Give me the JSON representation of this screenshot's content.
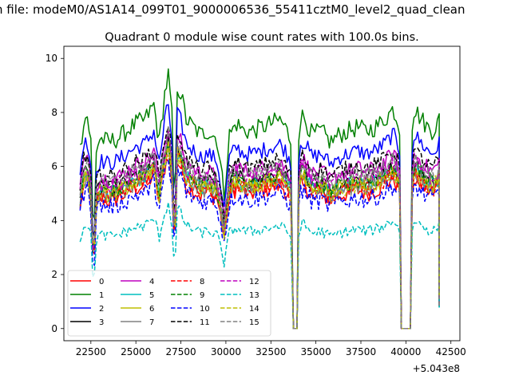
{
  "figure": {
    "suptitle": "n file: modeM0/AS1A14_099T01_9000006536_55411cztM0_level2_quad_clean",
    "title": "Quadrant 0 module wise count rates with 100.0s bins.",
    "offset_label": "+5.043e8"
  },
  "chart_data": {
    "type": "line",
    "title": "Quadrant 0 module wise count rates with 100.0s bins.",
    "xlabel": "",
    "ylabel": "",
    "x_offset": 504300000,
    "xlim": [
      21000,
      43000
    ],
    "ylim": [
      -0.45,
      10.45
    ],
    "x_ticks": [
      22500,
      25000,
      27500,
      30000,
      32500,
      35000,
      37500,
      40000,
      42500
    ],
    "y_ticks": [
      0,
      2,
      4,
      6,
      8,
      10
    ],
    "x_tick_labels": [
      "22500",
      "25000",
      "27500",
      "30000",
      "32500",
      "35000",
      "37500",
      "40000",
      "42500"
    ],
    "y_tick_labels": [
      "0",
      "2",
      "4",
      "6",
      "8",
      "10"
    ],
    "segments": [
      [
        21900,
        33650
      ],
      [
        34050,
        39650
      ],
      [
        40350,
        41850
      ]
    ],
    "base_profile": {
      "x": [
        21900,
        22100,
        22300,
        22500,
        22650,
        22800,
        23000,
        23500,
        24000,
        24500,
        25000,
        25500,
        26000,
        26300,
        26600,
        26800,
        27000,
        27150,
        27300,
        27500,
        27800,
        28200,
        28600,
        29000,
        29500,
        29700,
        29900,
        30200,
        30600,
        31000,
        31500,
        32000,
        32500,
        33000,
        33300,
        33650,
        34050,
        34300,
        34800,
        35300,
        35800,
        36300,
        36800,
        37300,
        37800,
        38300,
        38800,
        39300,
        39650,
        40350,
        40600,
        40900,
        41200,
        41500,
        41850
      ],
      "y": [
        4.8,
        5.6,
        5.7,
        5.0,
        2.0,
        4.8,
        5.1,
        5.0,
        5.1,
        5.3,
        5.5,
        5.6,
        6.0,
        5.0,
        6.3,
        6.8,
        5.7,
        2.8,
        6.5,
        6.3,
        5.6,
        5.4,
        5.2,
        5.3,
        5.1,
        4.4,
        3.6,
        5.2,
        5.5,
        5.3,
        5.3,
        5.4,
        5.5,
        5.6,
        5.4,
        5.0,
        5.6,
        5.7,
        5.2,
        5.3,
        5.0,
        5.2,
        5.3,
        5.4,
        5.3,
        5.4,
        5.6,
        5.9,
        5.4,
        5.9,
        5.8,
        5.6,
        5.4,
        5.3,
        5.6
      ]
    },
    "series": [
      {
        "name": "0",
        "color": "#ff0000",
        "style": "solid",
        "scale": 0.95,
        "noise": 0.35
      },
      {
        "name": "1",
        "color": "#008000",
        "style": "solid",
        "scale": 1.38,
        "noise": 0.35
      },
      {
        "name": "2",
        "color": "#0000ff",
        "style": "solid",
        "scale": 1.22,
        "noise": 0.3
      },
      {
        "name": "3",
        "color": "#000000",
        "style": "solid",
        "scale": 1.03,
        "noise": 0.3
      },
      {
        "name": "4",
        "color": "#bf00bf",
        "style": "solid",
        "scale": 1.1,
        "noise": 0.3
      },
      {
        "name": "5",
        "color": "#00bfbf",
        "style": "solid",
        "scale": 1.0,
        "noise": 0.3
      },
      {
        "name": "6",
        "color": "#bfbf00",
        "style": "solid",
        "scale": 1.0,
        "noise": 0.3
      },
      {
        "name": "7",
        "color": "#808080",
        "style": "solid",
        "scale": 0.98,
        "noise": 0.3
      },
      {
        "name": "8",
        "color": "#ff0000",
        "style": "dashed",
        "scale": 0.97,
        "noise": 0.3
      },
      {
        "name": "9",
        "color": "#008000",
        "style": "dashed",
        "scale": 1.02,
        "noise": 0.3
      },
      {
        "name": "10",
        "color": "#0000ff",
        "style": "dashed",
        "scale": 0.9,
        "noise": 0.35
      },
      {
        "name": "11",
        "color": "#000000",
        "style": "dashed",
        "scale": 1.12,
        "noise": 0.3
      },
      {
        "name": "12",
        "color": "#bf00bf",
        "style": "dashed",
        "scale": 1.05,
        "noise": 0.3
      },
      {
        "name": "13",
        "color": "#00bfbf",
        "style": "dashed",
        "scale": 0.68,
        "noise": 0.2
      },
      {
        "name": "14",
        "color": "#bfbf00",
        "style": "dashed",
        "scale": 0.99,
        "noise": 0.3
      },
      {
        "name": "15",
        "color": "#808080",
        "style": "dashed",
        "scale": 1.07,
        "noise": 0.3
      }
    ],
    "legend": {
      "location": "lower-left",
      "columns": 4
    }
  }
}
